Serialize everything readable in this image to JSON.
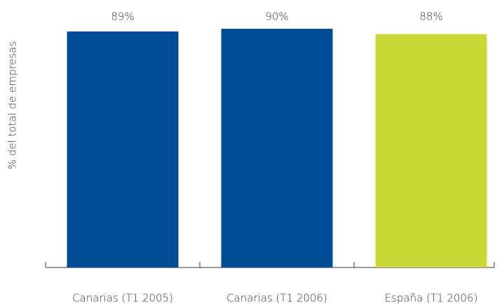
{
  "chart_data": {
    "type": "bar",
    "y_label": "% del total de empresas",
    "categories": [
      "Canarias (T1 2005)",
      "Canarias (T1 2006)",
      "España (T1 2006)"
    ],
    "values": [
      89,
      90,
      88
    ],
    "value_labels": [
      "89%",
      "90%",
      "88%"
    ],
    "colors": [
      "#004c97",
      "#004c97",
      "#c8d935"
    ],
    "ylim": [
      0,
      90
    ]
  }
}
